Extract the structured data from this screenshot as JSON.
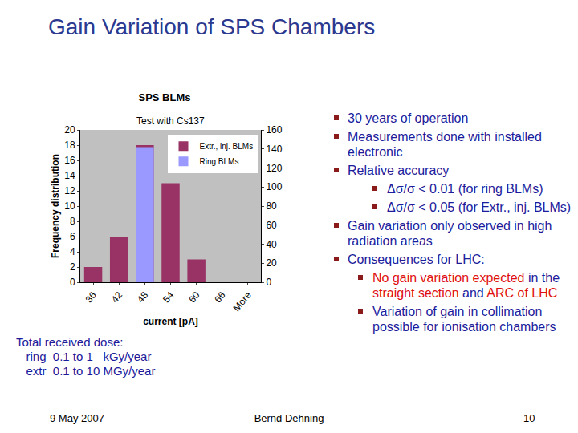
{
  "slide": {
    "title": "Gain Variation of SPS Chambers",
    "bullets": [
      {
        "level": 1,
        "segments": [
          {
            "text": "30 years of operation"
          }
        ]
      },
      {
        "level": 1,
        "segments": [
          {
            "text": "Measurements done with installed electronic"
          }
        ]
      },
      {
        "level": 1,
        "segments": [
          {
            "text": "Relative accuracy"
          }
        ]
      },
      {
        "level": 2,
        "segments": [
          {
            "text": "Δσ/σ  < 0.01 (for ring BLMs)"
          }
        ]
      },
      {
        "level": 2,
        "segments": [
          {
            "text": "Δσ/σ  < 0.05 (for Extr., inj. BLMs)"
          }
        ]
      },
      {
        "level": 1,
        "segments": [
          {
            "text": "Gain variation only observed in high radiation areas"
          }
        ]
      },
      {
        "level": 1,
        "segments": [
          {
            "text": "Consequences for LHC:"
          }
        ]
      },
      {
        "level": 3,
        "segments": [
          {
            "text": "No gain variation expected",
            "highlight": true
          },
          {
            "text": " in the "
          },
          {
            "text": "straight section",
            "highlight": true
          },
          {
            "text": " and "
          },
          {
            "text": "ARC of LHC",
            "highlight": true
          }
        ]
      },
      {
        "level": 3,
        "segments": [
          {
            "text": "Variation of gain in collimation possible for ionisation chambers"
          }
        ]
      }
    ],
    "dose": {
      "heading": "Total received dose:",
      "lines": [
        "   ring  0.1 to 1   kGy/year",
        "   extr  0.1 to 10 MGy/year"
      ]
    },
    "footer": {
      "date": "9 May 2007",
      "author": "Bernd Dehning",
      "page": "10"
    }
  },
  "chart_data": {
    "type": "bar",
    "title": "SPS BLMs",
    "annotation": "Test with Cs137",
    "x_label": "current [pA]",
    "y_label": "Frequency distribution",
    "categories": [
      "36",
      "42",
      "48",
      "54",
      "60",
      "66",
      "More"
    ],
    "series": [
      {
        "name": "Extr., inj. BLMs",
        "color": "#993366",
        "values": [
          2,
          6,
          18,
          13,
          3,
          0,
          0
        ]
      },
      {
        "name": "Ring BLMs",
        "color": "#9999ff",
        "values": [
          0,
          0,
          142,
          0,
          0,
          0,
          0
        ],
        "axis": "y2"
      }
    ],
    "ylim": [
      0,
      20
    ],
    "yticks": [
      0,
      2,
      4,
      6,
      8,
      10,
      12,
      14,
      16,
      18,
      20
    ],
    "y2lim": [
      0,
      160
    ],
    "y2ticks": [
      0,
      20,
      40,
      60,
      80,
      100,
      120,
      140,
      160
    ],
    "grid": false,
    "legend": "top right"
  }
}
